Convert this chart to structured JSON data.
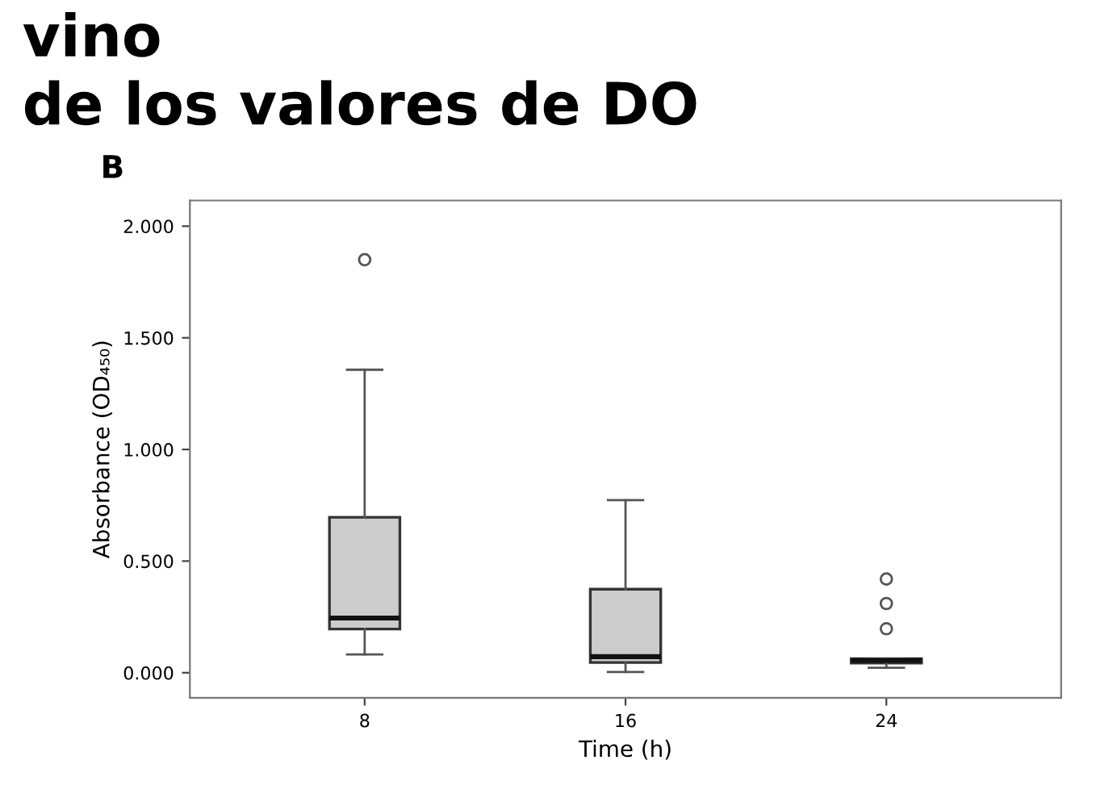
{
  "chart_data": {
    "type": "box",
    "title": "vino",
    "subtitle": "de los valores de DO",
    "annotations": [
      "B"
    ],
    "xlabel": "Time (h)",
    "ylabel": "Absorbance (OD₄₅₀)",
    "categories": [
      "8",
      "16",
      "24"
    ],
    "color": "#cccccc",
    "boxes": [
      {
        "low": 0.082,
        "q1": 0.196,
        "median": 0.245,
        "q3": 0.696,
        "high": 1.357,
        "outliers": [
          1.85
        ]
      },
      {
        "low": 0.003,
        "q1": 0.046,
        "median": 0.072,
        "q3": 0.374,
        "high": 0.773
      },
      {
        "low": 0.022,
        "q1": 0.043,
        "median": 0.055,
        "q3": 0.063,
        "high": 0.063,
        "outliers": [
          0.197,
          0.31,
          0.42
        ]
      }
    ],
    "ylim": [
      -0.112,
      2.115
    ],
    "yticks": [
      {
        "value": 0,
        "label": "0.000"
      },
      {
        "value": 0.5,
        "label": "0.500"
      },
      {
        "value": 1,
        "label": "1.000"
      },
      {
        "value": 1.5,
        "label": "1.500"
      },
      {
        "value": 2,
        "label": "2.000"
      }
    ],
    "grid": false,
    "legend": false
  }
}
